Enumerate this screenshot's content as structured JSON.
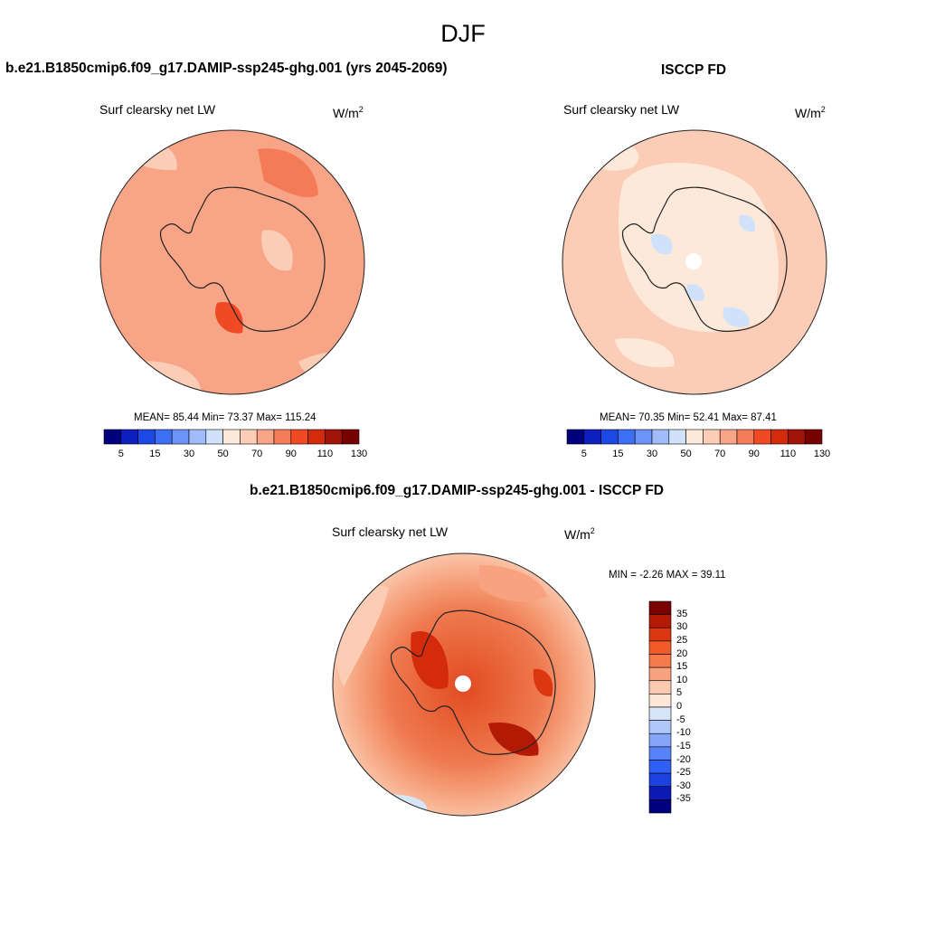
{
  "page": {
    "title": "DJF"
  },
  "palettes": {
    "absolute": [
      "#00007e",
      "#0d1fbf",
      "#1d48e6",
      "#3c6ff5",
      "#6c93f7",
      "#a0bcfa",
      "#d0e2f9",
      "#fde9d9",
      "#fccdb6",
      "#f8a486",
      "#f47b57",
      "#f04a25",
      "#d42b0c",
      "#a21408",
      "#760000"
    ],
    "difference": [
      "#00007e",
      "#0a1ab3",
      "#1d40e0",
      "#2f5ff6",
      "#5882f7",
      "#85a6f8",
      "#b0c8f9",
      "#d6e6f8",
      "#fde7d6",
      "#fbcab0",
      "#f8a27f",
      "#f57b4f",
      "#f25a28",
      "#db3711",
      "#b21a06",
      "#7a0000"
    ]
  },
  "panels": {
    "left": {
      "title": "b.e21.B1850cmip6.f09_g17.DAMIP-ssp245-ghg.001 (yrs 2045-2069)",
      "var_label": "Surf clearsky net LW",
      "units_base": "W/m",
      "units_exp": "2",
      "stats": "MEAN=  85.44   Min=  73.37   Max= 115.24"
    },
    "right": {
      "title": "ISCCP FD",
      "var_label": "Surf clearsky net LW",
      "units_base": "W/m",
      "units_exp": "2",
      "stats": "MEAN=  70.35   Min=  52.41   Max=  87.41"
    },
    "bottom": {
      "title": "b.e21.B1850cmip6.f09_g17.DAMIP-ssp245-ghg.001 - ISCCP FD",
      "var_label": "Surf clearsky net LW",
      "units_base": "W/m",
      "units_exp": "2",
      "stats": "MIN =  -2.26 MAX =  39.11"
    }
  },
  "chart_data": [
    {
      "type": "heatmap",
      "projection": "south-polar-stereographic",
      "title": "b.e21.B1850cmip6.f09_g17.DAMIP-ssp245-ghg.001 (yrs 2045-2069)",
      "variable": "Surf clearsky net LW",
      "units": "W/m2",
      "mean": 85.44,
      "min": 73.37,
      "max": 115.24,
      "colorbar_ticks": [
        5,
        15,
        30,
        50,
        70,
        90,
        110,
        130
      ],
      "colorbar_orientation": "horizontal",
      "colorbar_bins": 15
    },
    {
      "type": "heatmap",
      "projection": "south-polar-stereographic",
      "title": "ISCCP FD",
      "variable": "Surf clearsky net LW",
      "units": "W/m2",
      "mean": 70.35,
      "min": 52.41,
      "max": 87.41,
      "colorbar_ticks": [
        5,
        15,
        30,
        50,
        70,
        90,
        110,
        130
      ],
      "colorbar_orientation": "horizontal",
      "colorbar_bins": 15
    },
    {
      "type": "heatmap",
      "projection": "south-polar-stereographic",
      "title": "b.e21.B1850cmip6.f09_g17.DAMIP-ssp245-ghg.001 - ISCCP FD",
      "variable": "Surf clearsky net LW",
      "units": "W/m2",
      "min": -2.26,
      "max": 39.11,
      "colorbar_ticks": [
        35,
        30,
        25,
        20,
        15,
        10,
        5,
        0,
        -5,
        -10,
        -15,
        -20,
        -25,
        -30,
        -35
      ],
      "colorbar_orientation": "vertical",
      "colorbar_bins": 16
    }
  ]
}
